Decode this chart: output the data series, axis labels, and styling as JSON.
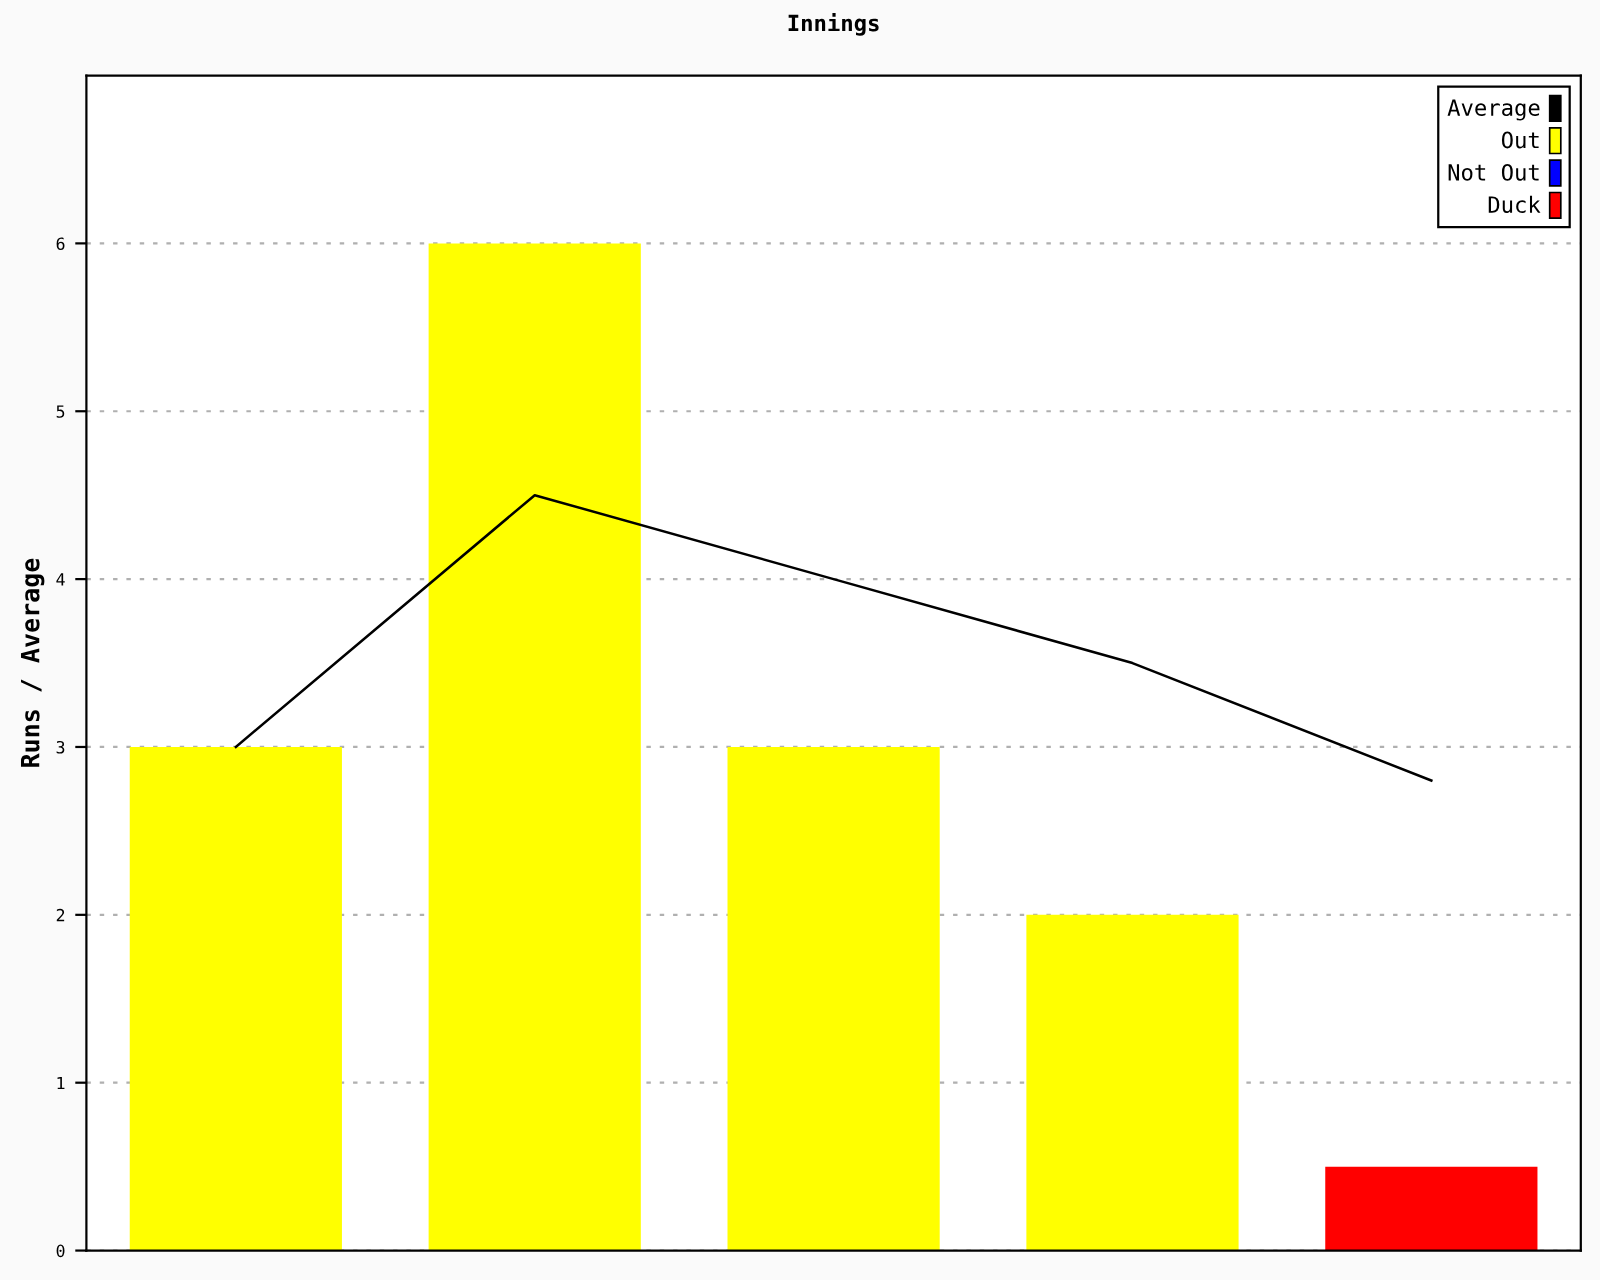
{
  "chart_data": {
    "type": "bar",
    "title": "Innings",
    "ylabel": "Runs / Average",
    "categories": [
      null,
      null,
      null,
      null,
      null
    ],
    "series": [
      {
        "name": "Average",
        "type": "line",
        "color": "#000000",
        "values": [
          3,
          4.5,
          4,
          3.5,
          2.8
        ]
      },
      {
        "name": "Out",
        "color": "#ffff00",
        "values": [
          3,
          6,
          3,
          2,
          null
        ]
      },
      {
        "name": "Not Out",
        "color": "#0000ff",
        "values": [
          null,
          null,
          null,
          null,
          null
        ]
      },
      {
        "name": "Duck",
        "color": "#ff0000",
        "values": [
          null,
          null,
          null,
          null,
          0.5
        ]
      }
    ],
    "ylim": [
      0,
      7
    ],
    "yticks": [
      0,
      1,
      2,
      3,
      4,
      5,
      6
    ],
    "grid": "y",
    "legend": "top right",
    "marker": "none",
    "line_style": "solid"
  }
}
